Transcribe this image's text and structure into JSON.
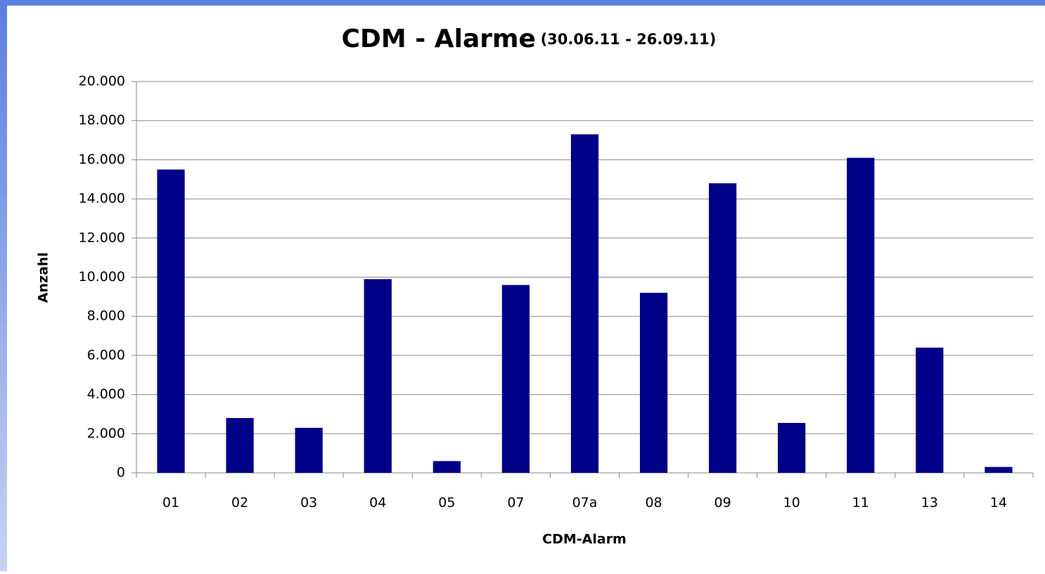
{
  "chart_data": {
    "type": "bar",
    "title": "CDM - Alarme",
    "subtitle": "(30.06.11 - 26.09.11)",
    "x_label": "CDM-Alarm",
    "y_label": "Anzahl",
    "categories": [
      "01",
      "02",
      "03",
      "04",
      "05",
      "07",
      "07a",
      "08",
      "09",
      "10",
      "11",
      "13",
      "14"
    ],
    "values": [
      15500,
      2800,
      2300,
      9900,
      600,
      9600,
      17300,
      9200,
      14800,
      2550,
      16100,
      6400,
      300
    ],
    "color": "#000088",
    "ylim": [
      0,
      20000
    ],
    "yticks": [
      0,
      {
        "value": 2000,
        "label": "2.000"
      },
      {
        "value": 4000,
        "label": "4.000"
      },
      {
        "value": 6000,
        "label": "6.000"
      },
      {
        "value": 8000,
        "label": "8.000"
      },
      {
        "value": 10000,
        "label": "10.000"
      },
      {
        "value": 12000,
        "label": "12.000"
      },
      {
        "value": 14000,
        "label": "14.000"
      },
      {
        "value": 16000,
        "label": "16.000"
      },
      {
        "value": 18000,
        "label": "18.000"
      },
      {
        "value": 20000,
        "label": "20.000"
      }
    ],
    "grid": true
  }
}
